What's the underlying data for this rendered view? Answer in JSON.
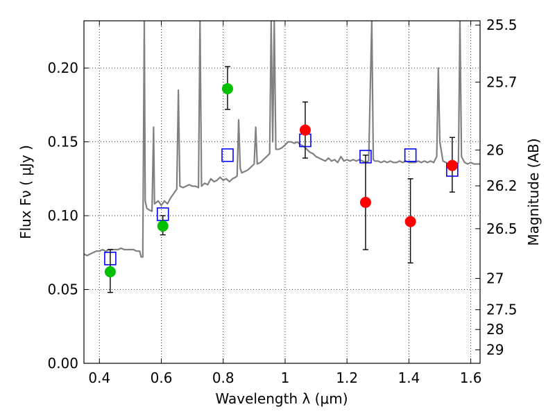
{
  "chart_data": {
    "type": "scatter",
    "title": "",
    "xlabel": "Wavelength  λ (μm)",
    "ylabel": "Flux  Fν  ( μJy )",
    "y2label": "Magnitude (AB)",
    "xlim": [
      0.35,
      1.63
    ],
    "ylim": [
      0.0,
      0.232
    ],
    "grid": true,
    "xticks": [
      0.4,
      0.6,
      0.8,
      1.0,
      1.2,
      1.4,
      1.6
    ],
    "xtick_labels": [
      "0.4",
      "0.6",
      "0.8",
      "1",
      "1.2",
      "1.4",
      "1.6"
    ],
    "yticks": [
      0.0,
      0.05,
      0.1,
      0.15,
      0.2
    ],
    "ytick_labels": [
      "0.00",
      "0.05",
      "0.10",
      "0.15",
      "0.20"
    ],
    "right_ticks": [
      {
        "label": "25.5",
        "flux": 0.2291
      },
      {
        "label": "25.7",
        "flux": 0.1905
      },
      {
        "label": "26",
        "flux": 0.1445
      },
      {
        "label": "26.2",
        "flux": 0.1202
      },
      {
        "label": "26.5",
        "flux": 0.0912
      },
      {
        "label": "27",
        "flux": 0.0575
      },
      {
        "label": "27.5",
        "flux": 0.0363
      },
      {
        "label": "28",
        "flux": 0.0229
      },
      {
        "label": "29",
        "flux": 0.0091
      }
    ],
    "series": [
      {
        "kind": "spectrum",
        "color": "#808080",
        "points": [
          [
            0.35,
            0.074
          ],
          [
            0.36,
            0.073
          ],
          [
            0.37,
            0.074
          ],
          [
            0.38,
            0.075
          ],
          [
            0.39,
            0.076
          ],
          [
            0.4,
            0.076
          ],
          [
            0.41,
            0.077
          ],
          [
            0.42,
            0.076
          ],
          [
            0.43,
            0.077
          ],
          [
            0.44,
            0.077
          ],
          [
            0.45,
            0.077
          ],
          [
            0.46,
            0.077
          ],
          [
            0.47,
            0.078
          ],
          [
            0.48,
            0.077
          ],
          [
            0.49,
            0.077
          ],
          [
            0.5,
            0.077
          ],
          [
            0.51,
            0.077
          ],
          [
            0.52,
            0.076
          ],
          [
            0.53,
            0.076
          ],
          [
            0.535,
            0.072
          ],
          [
            0.54,
            0.072
          ],
          [
            0.545,
            0.232
          ],
          [
            0.548,
            0.11
          ],
          [
            0.553,
            0.105
          ],
          [
            0.56,
            0.104
          ],
          [
            0.57,
            0.103
          ],
          [
            0.575,
            0.16
          ],
          [
            0.578,
            0.108
          ],
          [
            0.59,
            0.11
          ],
          [
            0.6,
            0.107
          ],
          [
            0.61,
            0.11
          ],
          [
            0.62,
            0.108
          ],
          [
            0.63,
            0.112
          ],
          [
            0.64,
            0.115
          ],
          [
            0.65,
            0.118
          ],
          [
            0.655,
            0.185
          ],
          [
            0.66,
            0.12
          ],
          [
            0.67,
            0.119
          ],
          [
            0.68,
            0.12
          ],
          [
            0.69,
            0.121
          ],
          [
            0.7,
            0.12
          ],
          [
            0.71,
            0.12
          ],
          [
            0.72,
            0.119
          ],
          [
            0.725,
            0.232
          ],
          [
            0.73,
            0.12
          ],
          [
            0.74,
            0.122
          ],
          [
            0.75,
            0.121
          ],
          [
            0.76,
            0.125
          ],
          [
            0.77,
            0.123
          ],
          [
            0.78,
            0.124
          ],
          [
            0.79,
            0.126
          ],
          [
            0.8,
            0.124
          ],
          [
            0.81,
            0.125
          ],
          [
            0.82,
            0.123
          ],
          [
            0.83,
            0.125
          ],
          [
            0.84,
            0.126
          ],
          [
            0.845,
            0.127
          ],
          [
            0.85,
            0.165
          ],
          [
            0.855,
            0.132
          ],
          [
            0.86,
            0.129
          ],
          [
            0.87,
            0.13
          ],
          [
            0.88,
            0.131
          ],
          [
            0.89,
            0.133
          ],
          [
            0.9,
            0.135
          ],
          [
            0.905,
            0.16
          ],
          [
            0.91,
            0.135
          ],
          [
            0.92,
            0.136
          ],
          [
            0.93,
            0.138
          ],
          [
            0.94,
            0.14
          ],
          [
            0.95,
            0.142
          ],
          [
            0.955,
            0.232
          ],
          [
            0.96,
            0.15
          ],
          [
            0.965,
            0.232
          ],
          [
            0.97,
            0.145
          ],
          [
            0.98,
            0.145
          ],
          [
            0.99,
            0.146
          ],
          [
            1.0,
            0.148
          ],
          [
            1.01,
            0.15
          ],
          [
            1.02,
            0.15
          ],
          [
            1.03,
            0.149
          ],
          [
            1.04,
            0.15
          ],
          [
            1.05,
            0.148
          ],
          [
            1.06,
            0.147
          ],
          [
            1.07,
            0.145
          ],
          [
            1.08,
            0.143
          ],
          [
            1.09,
            0.142
          ],
          [
            1.1,
            0.14
          ],
          [
            1.11,
            0.139
          ],
          [
            1.12,
            0.138
          ],
          [
            1.13,
            0.137
          ],
          [
            1.14,
            0.139
          ],
          [
            1.15,
            0.137
          ],
          [
            1.16,
            0.138
          ],
          [
            1.17,
            0.136
          ],
          [
            1.18,
            0.14
          ],
          [
            1.19,
            0.137
          ],
          [
            1.2,
            0.138
          ],
          [
            1.21,
            0.137
          ],
          [
            1.22,
            0.138
          ],
          [
            1.23,
            0.137
          ],
          [
            1.24,
            0.138
          ],
          [
            1.25,
            0.137
          ],
          [
            1.26,
            0.136
          ],
          [
            1.27,
            0.137
          ],
          [
            1.28,
            0.232
          ],
          [
            1.285,
            0.138
          ],
          [
            1.29,
            0.137
          ],
          [
            1.3,
            0.137
          ],
          [
            1.31,
            0.136
          ],
          [
            1.32,
            0.137
          ],
          [
            1.33,
            0.136
          ],
          [
            1.34,
            0.137
          ],
          [
            1.35,
            0.136
          ],
          [
            1.36,
            0.136
          ],
          [
            1.37,
            0.137
          ],
          [
            1.38,
            0.136
          ],
          [
            1.39,
            0.137
          ],
          [
            1.4,
            0.136
          ],
          [
            1.41,
            0.136
          ],
          [
            1.42,
            0.136
          ],
          [
            1.43,
            0.137
          ],
          [
            1.44,
            0.136
          ],
          [
            1.45,
            0.137
          ],
          [
            1.46,
            0.136
          ],
          [
            1.47,
            0.137
          ],
          [
            1.48,
            0.136
          ],
          [
            1.49,
            0.14
          ],
          [
            1.495,
            0.2
          ],
          [
            1.5,
            0.15
          ],
          [
            1.51,
            0.137
          ],
          [
            1.52,
            0.136
          ],
          [
            1.53,
            0.135
          ],
          [
            1.54,
            0.136
          ],
          [
            1.55,
            0.135
          ],
          [
            1.56,
            0.136
          ],
          [
            1.565,
            0.232
          ],
          [
            1.57,
            0.14
          ],
          [
            1.58,
            0.136
          ],
          [
            1.59,
            0.135
          ],
          [
            1.6,
            0.136
          ],
          [
            1.61,
            0.135
          ],
          [
            1.62,
            0.135
          ],
          [
            1.63,
            0.135
          ]
        ]
      },
      {
        "kind": "model-photometry",
        "marker": "open-square",
        "color": "#0000ff",
        "points": [
          [
            0.435,
            0.071
          ],
          [
            0.605,
            0.101
          ],
          [
            0.814,
            0.141
          ],
          [
            1.065,
            0.151
          ],
          [
            1.26,
            0.14
          ],
          [
            1.405,
            0.141
          ],
          [
            1.54,
            0.131
          ]
        ]
      },
      {
        "kind": "observed",
        "marker": "filled-circle",
        "color": "#00c000",
        "points": [
          {
            "x": 0.435,
            "y": 0.062,
            "ylo": 0.048,
            "yhi": 0.077
          },
          {
            "x": 0.605,
            "y": 0.093,
            "ylo": 0.087,
            "yhi": 0.1
          },
          {
            "x": 0.814,
            "y": 0.186,
            "ylo": 0.172,
            "yhi": 0.201
          }
        ]
      },
      {
        "kind": "observed",
        "marker": "filled-circle",
        "color": "#ff0000",
        "points": [
          {
            "x": 1.065,
            "y": 0.158,
            "ylo": 0.139,
            "yhi": 0.177
          },
          {
            "x": 1.26,
            "y": 0.109,
            "ylo": 0.077,
            "yhi": 0.141
          },
          {
            "x": 1.405,
            "y": 0.096,
            "ylo": 0.068,
            "yhi": 0.125
          },
          {
            "x": 1.54,
            "y": 0.134,
            "ylo": 0.116,
            "yhi": 0.153
          }
        ]
      }
    ]
  }
}
